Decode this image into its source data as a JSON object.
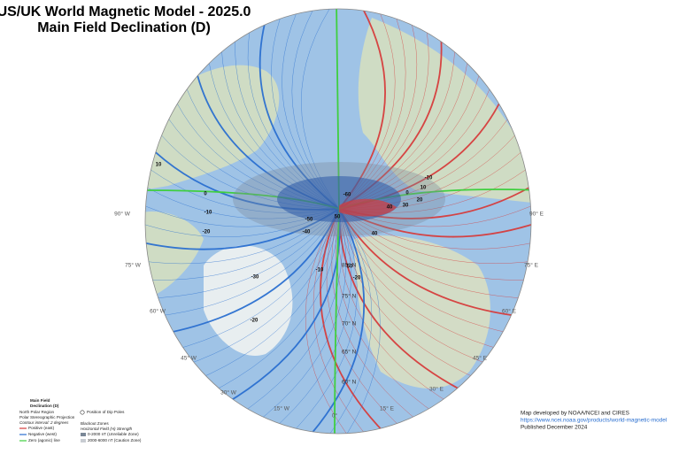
{
  "title": [
    "US/UK World Magnetic Model - 2025.0",
    "Main Field Declination (D)"
  ],
  "longitude_labels": [
    "90° W",
    "75° W",
    "60° W",
    "45° W",
    "30° W",
    "15° W",
    "0°",
    "15° E",
    "30° E",
    "45° E",
    "60° E",
    "75° E",
    "90° E"
  ],
  "latitude_labels": [
    "85° N",
    "75° N",
    "70° N",
    "65° N",
    "60° N"
  ],
  "contour_labels": [
    "10",
    "0",
    "-10",
    "-20",
    "-30",
    "-20",
    "-10",
    "-40",
    "-50",
    "-60",
    "50",
    "40",
    "30",
    "20",
    "10",
    "0",
    "-10",
    "-20",
    "40",
    "50"
  ],
  "legend": {
    "heading": [
      "Main Field",
      "Declination (D)"
    ],
    "region": "North Polar Region",
    "projection": "Polar Stereographic Projection",
    "interval": "Contour interval: 2 degrees",
    "positive": "Positive (east)",
    "negative": "Negative (west)",
    "zero": "Zero (agonic) line",
    "dip_poles": "Position of Dip Poles",
    "blackout": "Blackout Zones",
    "h_strength": "Horizontal Field (H) Strength",
    "unreliable": "0-2000 nT (Unreliable Zone)",
    "caution": "2000-6000 nT (Caution Zone)"
  },
  "credits": [
    "Map developed by NOAA/NCEI and CIRES",
    "https://www.ncei.noaa.gov/products/world-magnetic-model",
    "Published December 2024"
  ]
}
